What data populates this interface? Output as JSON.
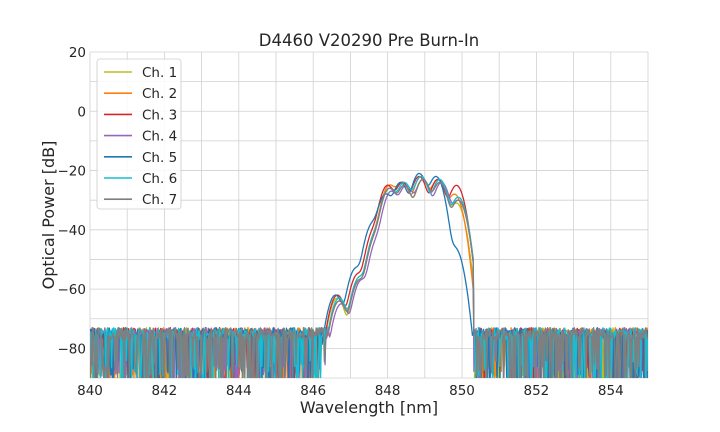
{
  "chart_data": {
    "type": "line",
    "title": "D4460 V20290 Pre Burn-In",
    "xlabel": "Wavelength [nm]",
    "ylabel": "Optical Power [dB]",
    "xlim": [
      840,
      855
    ],
    "ylim": [
      -90,
      20
    ],
    "x_ticks": [
      840,
      842,
      844,
      846,
      848,
      850,
      852,
      854
    ],
    "y_ticks": [
      20,
      0,
      -20,
      -40,
      -60,
      -80
    ],
    "grid": true,
    "legend_position": "top-left",
    "noise_floor_db": -80,
    "series": [
      {
        "name": "Ch. 1",
        "color": "#bcbd22",
        "peaks": [
          [
            846.65,
            -63
          ],
          [
            847.25,
            -57
          ],
          [
            847.7,
            -42
          ],
          [
            848.05,
            -26
          ],
          [
            848.45,
            -25
          ],
          [
            848.95,
            -23
          ],
          [
            849.4,
            -24
          ],
          [
            849.85,
            -31
          ]
        ]
      },
      {
        "name": "Ch. 2",
        "color": "#ff7f0e",
        "peaks": [
          [
            846.7,
            -64
          ],
          [
            847.25,
            -56
          ],
          [
            847.7,
            -41
          ],
          [
            848.05,
            -25
          ],
          [
            848.4,
            -24
          ],
          [
            848.9,
            -22
          ],
          [
            849.35,
            -23
          ],
          [
            849.8,
            -28
          ]
        ]
      },
      {
        "name": "Ch. 3",
        "color": "#d62728",
        "peaks": [
          [
            846.65,
            -62
          ],
          [
            847.2,
            -55
          ],
          [
            847.65,
            -40
          ],
          [
            848.0,
            -25
          ],
          [
            848.4,
            -24
          ],
          [
            848.85,
            -22
          ],
          [
            849.35,
            -23
          ],
          [
            849.85,
            -25
          ]
        ]
      },
      {
        "name": "Ch. 4",
        "color": "#9467bd",
        "peaks": [
          [
            846.75,
            -65
          ],
          [
            847.3,
            -57
          ],
          [
            847.75,
            -43
          ],
          [
            848.1,
            -27
          ],
          [
            848.5,
            -25
          ],
          [
            848.95,
            -23
          ],
          [
            849.45,
            -24
          ],
          [
            849.9,
            -30
          ]
        ]
      },
      {
        "name": "Ch. 5",
        "color": "#1f77b4",
        "peaks": [
          [
            846.6,
            -62
          ],
          [
            847.15,
            -53
          ],
          [
            847.6,
            -38
          ],
          [
            847.95,
            -28
          ],
          [
            848.35,
            -24
          ],
          [
            848.85,
            -21
          ],
          [
            849.3,
            -22
          ],
          [
            849.8,
            -46
          ]
        ]
      },
      {
        "name": "Ch. 6",
        "color": "#17becf",
        "peaks": [
          [
            846.7,
            -63
          ],
          [
            847.25,
            -56
          ],
          [
            847.7,
            -41
          ],
          [
            848.05,
            -26
          ],
          [
            848.45,
            -24
          ],
          [
            848.9,
            -22
          ],
          [
            849.4,
            -23
          ],
          [
            849.9,
            -29
          ]
        ]
      },
      {
        "name": "Ch. 7",
        "color": "#7f7f7f",
        "peaks": [
          [
            846.7,
            -64
          ],
          [
            847.25,
            -57
          ],
          [
            847.7,
            -42
          ],
          [
            848.05,
            -26
          ],
          [
            848.45,
            -25
          ],
          [
            848.95,
            -23
          ],
          [
            849.4,
            -24
          ],
          [
            849.9,
            -30
          ]
        ]
      }
    ]
  }
}
